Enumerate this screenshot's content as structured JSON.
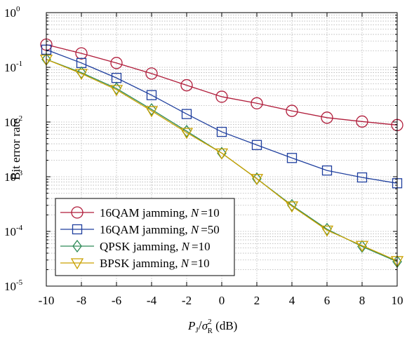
{
  "chart_data": {
    "type": "line",
    "title": "",
    "y_scale": "log",
    "grid": true,
    "legend_position": "bottom-left",
    "xlim": [
      -10,
      10
    ],
    "ylim": [
      1e-05,
      1
    ],
    "x_ticks": [
      "-10",
      "-8",
      "-6",
      "-4",
      "-2",
      "0",
      "2",
      "4",
      "6",
      "8",
      "10"
    ],
    "y_ticks": [
      {
        "base": "10",
        "exp": "0"
      },
      {
        "base": "10",
        "exp": "-1"
      },
      {
        "base": "10",
        "exp": "-2"
      },
      {
        "base": "10",
        "exp": "-3"
      },
      {
        "base": "10",
        "exp": "-4"
      },
      {
        "base": "10",
        "exp": "-5"
      }
    ],
    "ylabel": "Bit error rate",
    "xlabel": {
      "p": "P",
      "p_sub": "J",
      "slash": "/",
      "sigma": "σ",
      "sigma_sup": "2",
      "sigma_sub": "R",
      "unit": " (dB)"
    },
    "x": [
      -10,
      -8,
      -6,
      -4,
      -2,
      0,
      2,
      4,
      6,
      8,
      10
    ],
    "series": [
      {
        "name": "16QAM jamming, ",
        "n_label": "N",
        "n_value": "=10",
        "color": "#b01c3a",
        "marker": "circle",
        "values": [
          0.26,
          0.18,
          0.12,
          0.077,
          0.047,
          0.029,
          0.022,
          0.016,
          0.012,
          0.0102,
          0.0088
        ]
      },
      {
        "name": "16QAM jamming, ",
        "n_label": "N",
        "n_value": "=50",
        "color": "#1f3f9e",
        "marker": "square",
        "values": [
          0.21,
          0.12,
          0.064,
          0.031,
          0.014,
          0.0066,
          0.0038,
          0.0022,
          0.0013,
          0.00097,
          0.00076
        ]
      },
      {
        "name": "QPSK jamming, ",
        "n_label": "N",
        "n_value": "=10",
        "color": "#2e8a57",
        "marker": "diamond",
        "values": [
          0.14,
          0.08,
          0.041,
          0.017,
          0.0068,
          0.0027,
          0.00092,
          0.0003,
          0.00011,
          5.3e-05,
          2.8e-05
        ]
      },
      {
        "name": "BPSK jamming, ",
        "n_label": "N",
        "n_value": "=10",
        "color": "#c9a100",
        "marker": "triangle-down",
        "values": [
          0.14,
          0.077,
          0.039,
          0.016,
          0.0064,
          0.0027,
          0.00092,
          0.00029,
          0.000105,
          5.5e-05,
          2.9e-05
        ]
      }
    ]
  }
}
